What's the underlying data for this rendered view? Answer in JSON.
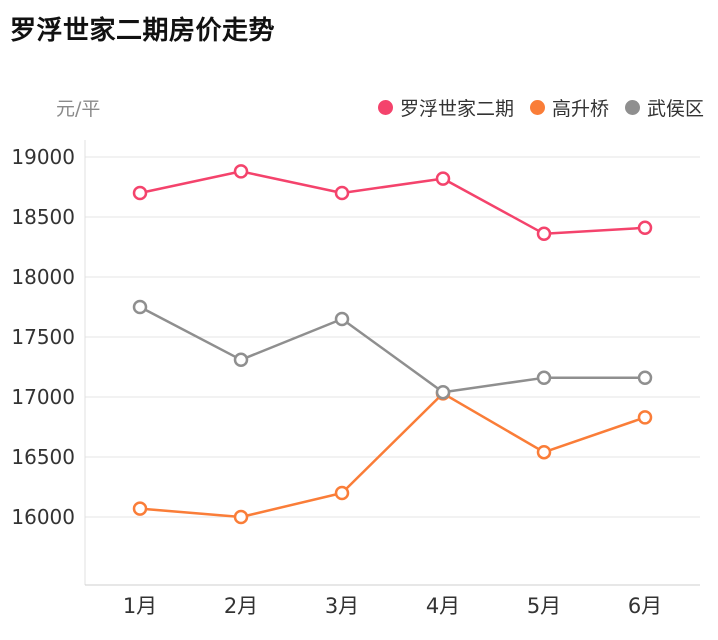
{
  "title": "罗浮世家二期房价走势",
  "y_unit_label": "元/平",
  "legend": [
    {
      "label": "罗浮世家二期",
      "color": "#f4436c"
    },
    {
      "label": "高升桥",
      "color": "#fa7d38"
    },
    {
      "label": "武侯区",
      "color": "#8f8f8f"
    }
  ],
  "chart_data": {
    "type": "line",
    "title": "罗浮世家二期房价走势",
    "ylabel": "元/平",
    "categories": [
      "1月",
      "2月",
      "3月",
      "4月",
      "5月",
      "6月"
    ],
    "series": [
      {
        "name": "罗浮世家二期",
        "color": "#f4436c",
        "values": [
          18700,
          18880,
          18700,
          18820,
          18360,
          18410
        ]
      },
      {
        "name": "高升桥",
        "color": "#fa7d38",
        "values": [
          16070,
          16000,
          16200,
          17030,
          16540,
          16830
        ]
      },
      {
        "name": "武侯区",
        "color": "#8f8f8f",
        "values": [
          17750,
          17310,
          17650,
          17040,
          17160,
          17160
        ]
      }
    ],
    "yticks": [
      16000,
      16500,
      17000,
      17500,
      18000,
      18500,
      19000
    ],
    "ylim": [
      15450,
      19150
    ],
    "grid": true,
    "legend_position": "top-right",
    "marker": "open-circle"
  }
}
